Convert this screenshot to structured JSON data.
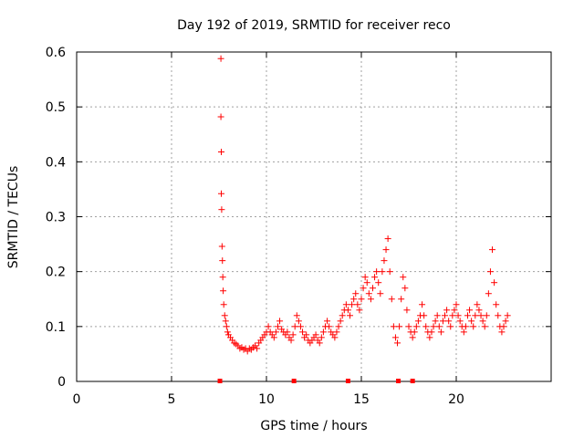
{
  "chart_data": {
    "type": "scatter",
    "title": "Day 192 of 2019, SRMTID for receiver reco",
    "xlabel": "GPS time / hours",
    "ylabel": "SRMTID / TECUs",
    "xlim": [
      0,
      25
    ],
    "ylim": [
      0,
      0.6
    ],
    "xticks": [
      0,
      5,
      10,
      15,
      20
    ],
    "xtick_labels": [
      "0",
      "5",
      "10",
      "15",
      "20"
    ],
    "yticks": [
      0,
      0.1,
      0.2,
      0.3,
      0.4,
      0.5,
      0.6
    ],
    "ytick_labels": [
      "0",
      "0.1",
      "0.2",
      "0.3",
      "0.4",
      "0.5",
      "0.6"
    ],
    "grid": true,
    "marker": "+",
    "color": "#ff0000",
    "series": [
      {
        "name": "SRMTID",
        "x": [
          7.6,
          7.6,
          7.62,
          7.62,
          7.64,
          7.66,
          7.68,
          7.7,
          7.72,
          7.75,
          7.8,
          7.85,
          7.9,
          7.95,
          8.0,
          8.1,
          8.2,
          8.3,
          8.4,
          8.5,
          8.6,
          8.7,
          8.8,
          8.9,
          9.0,
          9.1,
          9.2,
          9.3,
          9.4,
          9.5,
          9.6,
          9.7,
          9.8,
          9.9,
          10.0,
          10.1,
          10.2,
          10.3,
          10.4,
          10.5,
          10.6,
          10.7,
          10.8,
          10.9,
          11.0,
          11.1,
          11.2,
          11.3,
          11.4,
          11.5,
          11.6,
          11.7,
          11.8,
          11.9,
          12.0,
          12.1,
          12.2,
          12.3,
          12.4,
          12.5,
          12.6,
          12.7,
          12.8,
          12.9,
          13.0,
          13.1,
          13.2,
          13.3,
          13.4,
          13.5,
          13.6,
          13.7,
          13.8,
          13.9,
          14.0,
          14.1,
          14.2,
          14.3,
          14.4,
          14.5,
          14.6,
          14.7,
          14.8,
          14.9,
          15.0,
          15.1,
          15.2,
          15.3,
          15.4,
          15.5,
          15.6,
          15.7,
          15.8,
          15.9,
          16.0,
          16.1,
          16.2,
          16.3,
          16.4,
          16.5,
          16.6,
          16.7,
          16.8,
          16.9,
          17.0,
          17.1,
          17.2,
          17.3,
          17.4,
          17.5,
          17.6,
          17.7,
          17.8,
          17.9,
          18.0,
          18.1,
          18.2,
          18.3,
          18.4,
          18.5,
          18.6,
          18.7,
          18.8,
          18.9,
          19.0,
          19.1,
          19.2,
          19.3,
          19.4,
          19.5,
          19.6,
          19.7,
          19.8,
          19.9,
          20.0,
          20.1,
          20.2,
          20.3,
          20.4,
          20.5,
          20.6,
          20.7,
          20.8,
          20.9,
          21.0,
          21.1,
          21.2,
          21.3,
          21.4,
          21.5,
          21.6,
          21.7,
          21.8,
          21.9,
          22.0,
          22.1,
          22.2,
          22.3,
          22.4,
          22.5,
          22.6,
          22.7
        ],
        "y": [
          0.588,
          0.482,
          0.418,
          0.342,
          0.313,
          0.246,
          0.22,
          0.19,
          0.165,
          0.14,
          0.12,
          0.11,
          0.1,
          0.09,
          0.085,
          0.08,
          0.075,
          0.07,
          0.068,
          0.065,
          0.06,
          0.062,
          0.058,
          0.06,
          0.055,
          0.06,
          0.058,
          0.062,
          0.065,
          0.06,
          0.07,
          0.075,
          0.08,
          0.085,
          0.09,
          0.1,
          0.09,
          0.085,
          0.08,
          0.09,
          0.1,
          0.11,
          0.095,
          0.09,
          0.085,
          0.09,
          0.08,
          0.075,
          0.085,
          0.1,
          0.12,
          0.11,
          0.1,
          0.09,
          0.08,
          0.085,
          0.075,
          0.07,
          0.075,
          0.08,
          0.085,
          0.075,
          0.07,
          0.08,
          0.09,
          0.1,
          0.11,
          0.1,
          0.09,
          0.085,
          0.08,
          0.09,
          0.1,
          0.11,
          0.12,
          0.13,
          0.14,
          0.13,
          0.12,
          0.14,
          0.15,
          0.16,
          0.14,
          0.13,
          0.15,
          0.17,
          0.19,
          0.18,
          0.16,
          0.15,
          0.17,
          0.19,
          0.2,
          0.18,
          0.16,
          0.2,
          0.22,
          0.24,
          0.26,
          0.2,
          0.15,
          0.1,
          0.08,
          0.07,
          0.1,
          0.15,
          0.19,
          0.17,
          0.13,
          0.1,
          0.09,
          0.08,
          0.09,
          0.1,
          0.11,
          0.12,
          0.14,
          0.12,
          0.1,
          0.09,
          0.08,
          0.09,
          0.1,
          0.11,
          0.12,
          0.1,
          0.09,
          0.11,
          0.12,
          0.13,
          0.11,
          0.1,
          0.12,
          0.13,
          0.14,
          0.12,
          0.11,
          0.1,
          0.09,
          0.1,
          0.12,
          0.13,
          0.11,
          0.1,
          0.12,
          0.14,
          0.13,
          0.12,
          0.11,
          0.1,
          0.12,
          0.16,
          0.2,
          0.24,
          0.18,
          0.14,
          0.12,
          0.1,
          0.09,
          0.1,
          0.11,
          0.12
        ]
      },
      {
        "name": "gaps",
        "x": [
          7.55,
          11.45,
          14.3,
          16.95,
          17.7
        ],
        "y": [
          0,
          0,
          0,
          0,
          0
        ]
      }
    ]
  }
}
